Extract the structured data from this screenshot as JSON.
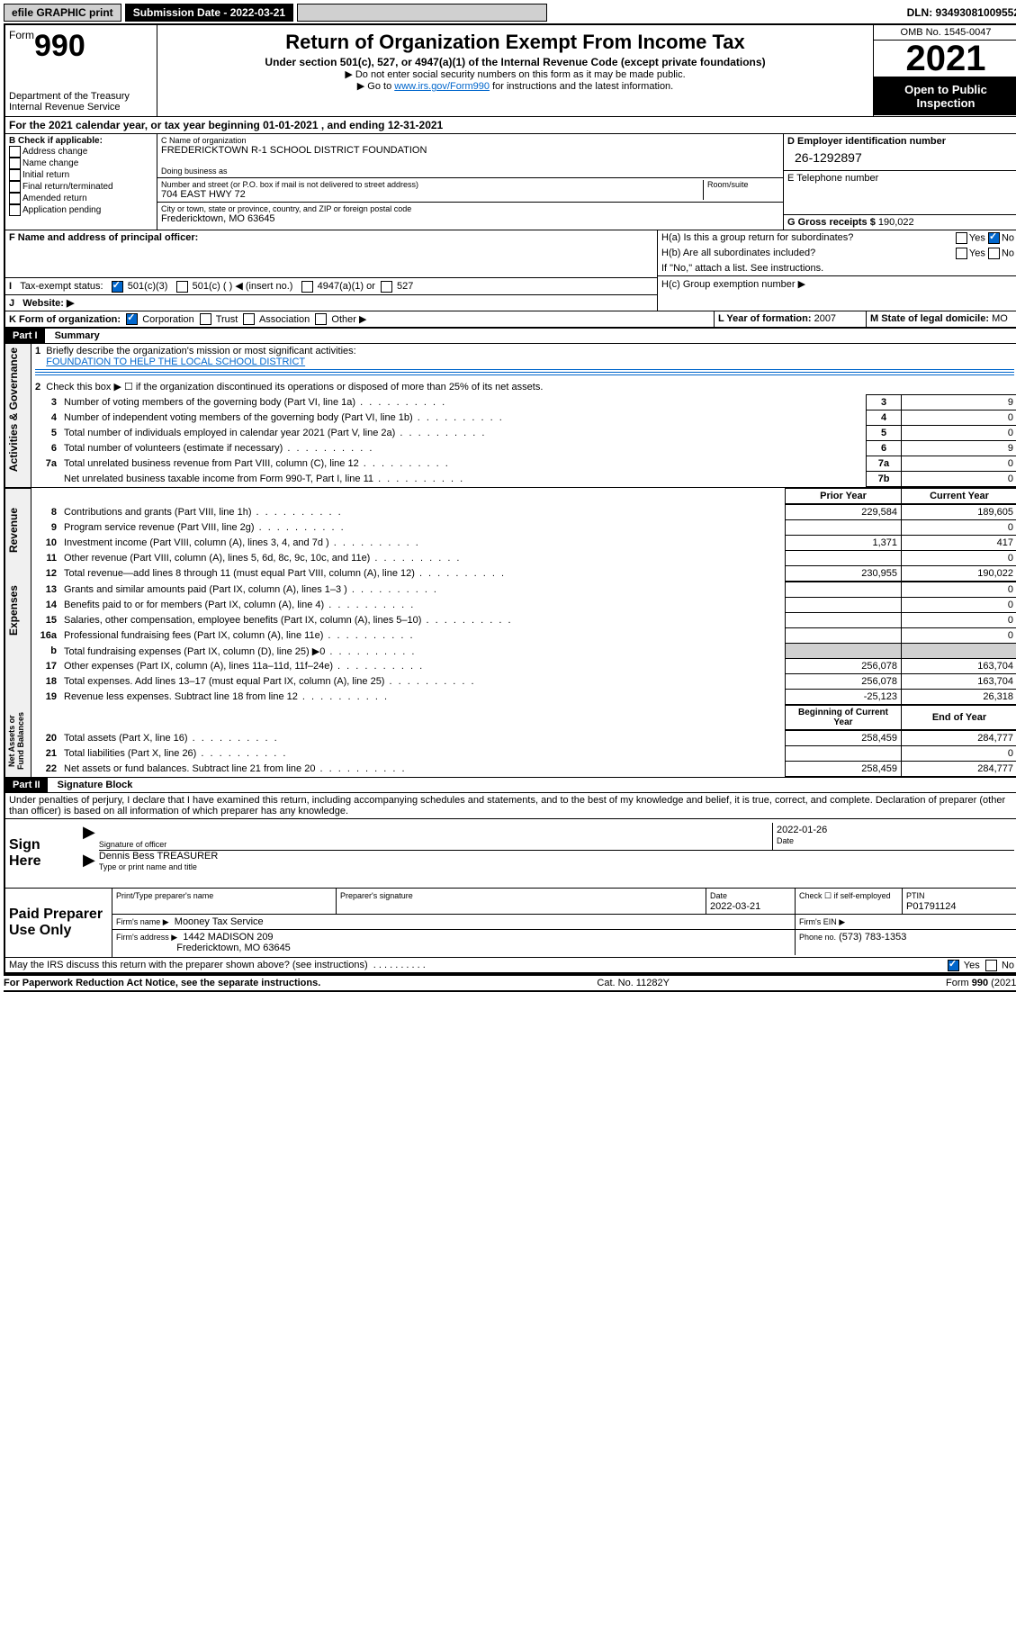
{
  "topbar": {
    "efile": "efile GRAPHIC print",
    "submission_label": "Submission Date - 2022-03-21",
    "dln": "DLN: 93493081009552"
  },
  "header": {
    "form_word": "Form",
    "form_num": "990",
    "dept": "Department of the Treasury",
    "irs": "Internal Revenue Service",
    "title": "Return of Organization Exempt From Income Tax",
    "subtitle": "Under section 501(c), 527, or 4947(a)(1) of the Internal Revenue Code (except private foundations)",
    "note1": "▶ Do not enter social security numbers on this form as it may be made public.",
    "note2_pre": "▶ Go to ",
    "note2_link": "www.irs.gov/Form990",
    "note2_post": " for instructions and the latest information.",
    "omb": "OMB No. 1545-0047",
    "year": "2021",
    "open": "Open to Public Inspection"
  },
  "line_a": "For the 2021 calendar year, or tax year beginning 01-01-2021    , and ending 12-31-2021",
  "b": {
    "label": "B Check if applicable:",
    "addr": "Address change",
    "name": "Name change",
    "initial": "Initial return",
    "final": "Final return/terminated",
    "amended": "Amended return",
    "app": "Application pending"
  },
  "c": {
    "name_label": "C Name of organization",
    "name": "FREDERICKTOWN R-1 SCHOOL DISTRICT FOUNDATION",
    "dba_label": "Doing business as",
    "addr_label": "Number and street (or P.O. box if mail is not delivered to street address)",
    "room_label": "Room/suite",
    "addr": "704 EAST HWY 72",
    "city_label": "City or town, state or province, country, and ZIP or foreign postal code",
    "city": "Fredericktown, MO  63645"
  },
  "d": {
    "label": "D Employer identification number",
    "value": "26-1292897"
  },
  "e": {
    "label": "E Telephone number",
    "value": ""
  },
  "g": {
    "label": "G Gross receipts $",
    "value": "190,022"
  },
  "f": {
    "label": "F  Name and address of principal officer:"
  },
  "h": {
    "a": "H(a)  Is this a group return for subordinates?",
    "b": "H(b)  Are all subordinates included?",
    "b_note": "If \"No,\" attach a list. See instructions.",
    "c": "H(c)  Group exemption number ▶",
    "yes": "Yes",
    "no": "No"
  },
  "i": {
    "label": "Tax-exempt status:",
    "c3": "501(c)(3)",
    "c": "501(c) (   ) ◀ (insert no.)",
    "a1": "4947(a)(1) or",
    "527": "527"
  },
  "j": {
    "label": "Website: ▶"
  },
  "k": {
    "label": "K Form of organization:",
    "corp": "Corporation",
    "trust": "Trust",
    "assoc": "Association",
    "other": "Other ▶"
  },
  "l": {
    "label": "L Year of formation:",
    "value": "2007"
  },
  "m": {
    "label": "M State of legal domicile:",
    "value": "MO"
  },
  "part1": {
    "header": "Part I",
    "title": "Summary"
  },
  "summary": {
    "mission_label": "Briefly describe the organization's mission or most significant activities:",
    "mission": "FOUNDATION TO HELP THE LOCAL SCHOOL DISTRICT",
    "line2": "Check this box ▶ ☐  if the organization discontinued its operations or disposed of more than 25% of its net assets.",
    "lines_ag": [
      {
        "n": "3",
        "t": "Number of voting members of the governing body (Part VI, line 1a)",
        "c": "3",
        "v": "9"
      },
      {
        "n": "4",
        "t": "Number of independent voting members of the governing body (Part VI, line 1b)",
        "c": "4",
        "v": "0"
      },
      {
        "n": "5",
        "t": "Total number of individuals employed in calendar year 2021 (Part V, line 2a)",
        "c": "5",
        "v": "0"
      },
      {
        "n": "6",
        "t": "Total number of volunteers (estimate if necessary)",
        "c": "6",
        "v": "9"
      },
      {
        "n": "7a",
        "t": "Total unrelated business revenue from Part VIII, column (C), line 12",
        "c": "7a",
        "v": "0"
      },
      {
        "n": "",
        "t": "Net unrelated business taxable income from Form 990-T, Part I, line 11",
        "c": "7b",
        "v": "0"
      }
    ],
    "col_prior": "Prior Year",
    "col_current": "Current Year",
    "sections": {
      "ag": "Activities & Governance",
      "rev": "Revenue",
      "exp": "Expenses",
      "net": "Net Assets or Fund Balances"
    },
    "rev": [
      {
        "n": "8",
        "t": "Contributions and grants (Part VIII, line 1h)",
        "p": "229,584",
        "c": "189,605"
      },
      {
        "n": "9",
        "t": "Program service revenue (Part VIII, line 2g)",
        "p": "",
        "c": "0"
      },
      {
        "n": "10",
        "t": "Investment income (Part VIII, column (A), lines 3, 4, and 7d )",
        "p": "1,371",
        "c": "417"
      },
      {
        "n": "11",
        "t": "Other revenue (Part VIII, column (A), lines 5, 6d, 8c, 9c, 10c, and 11e)",
        "p": "",
        "c": "0"
      },
      {
        "n": "12",
        "t": "Total revenue—add lines 8 through 11 (must equal Part VIII, column (A), line 12)",
        "p": "230,955",
        "c": "190,022"
      }
    ],
    "exp": [
      {
        "n": "13",
        "t": "Grants and similar amounts paid (Part IX, column (A), lines 1–3 )",
        "p": "",
        "c": "0"
      },
      {
        "n": "14",
        "t": "Benefits paid to or for members (Part IX, column (A), line 4)",
        "p": "",
        "c": "0"
      },
      {
        "n": "15",
        "t": "Salaries, other compensation, employee benefits (Part IX, column (A), lines 5–10)",
        "p": "",
        "c": "0"
      },
      {
        "n": "16a",
        "t": "Professional fundraising fees (Part IX, column (A), line 11e)",
        "p": "",
        "c": "0"
      },
      {
        "n": "b",
        "t": "Total fundraising expenses (Part IX, column (D), line 25) ▶0",
        "p": "GRAY",
        "c": "GRAY"
      },
      {
        "n": "17",
        "t": "Other expenses (Part IX, column (A), lines 11a–11d, 11f–24e)",
        "p": "256,078",
        "c": "163,704"
      },
      {
        "n": "18",
        "t": "Total expenses. Add lines 13–17 (must equal Part IX, column (A), line 25)",
        "p": "256,078",
        "c": "163,704"
      },
      {
        "n": "19",
        "t": "Revenue less expenses. Subtract line 18 from line 12",
        "p": "-25,123",
        "c": "26,318"
      }
    ],
    "net_h1": "Beginning of Current Year",
    "net_h2": "End of Year",
    "net": [
      {
        "n": "20",
        "t": "Total assets (Part X, line 16)",
        "p": "258,459",
        "c": "284,777"
      },
      {
        "n": "21",
        "t": "Total liabilities (Part X, line 26)",
        "p": "",
        "c": "0"
      },
      {
        "n": "22",
        "t": "Net assets or fund balances. Subtract line 21 from line 20",
        "p": "258,459",
        "c": "284,777"
      }
    ]
  },
  "part2": {
    "header": "Part II",
    "title": "Signature Block"
  },
  "sig": {
    "decl": "Under penalties of perjury, I declare that I have examined this return, including accompanying schedules and statements, and to the best of my knowledge and belief, it is true, correct, and complete. Declaration of preparer (other than officer) is based on all information of which preparer has any knowledge.",
    "sign_here": "Sign Here",
    "sig_officer": "Signature of officer",
    "date_label": "Date",
    "date": "2022-01-26",
    "name": "Dennis Bess  TREASURER",
    "name_label": "Type or print name and title",
    "paid": "Paid Preparer Use Only",
    "pt_name_label": "Print/Type preparer's name",
    "pt_sig_label": "Preparer's signature",
    "pt_date_label": "Date",
    "pt_date": "2022-03-21",
    "check_label": "Check ☐ if self-employed",
    "ptin_label": "PTIN",
    "ptin": "P01791124",
    "firm_name_label": "Firm's name    ▶",
    "firm_name": "Mooney Tax Service",
    "firm_ein_label": "Firm's EIN ▶",
    "firm_addr_label": "Firm's address ▶",
    "firm_addr1": "1442 MADISON 209",
    "firm_addr2": "Fredericktown, MO  63645",
    "phone_label": "Phone no.",
    "phone": "(573) 783-1353",
    "may_irs": "May the IRS discuss this return with the preparer shown above? (see instructions)"
  },
  "footer": {
    "paperwork": "For Paperwork Reduction Act Notice, see the separate instructions.",
    "cat": "Cat. No. 11282Y",
    "form": "Form 990 (2021)"
  }
}
